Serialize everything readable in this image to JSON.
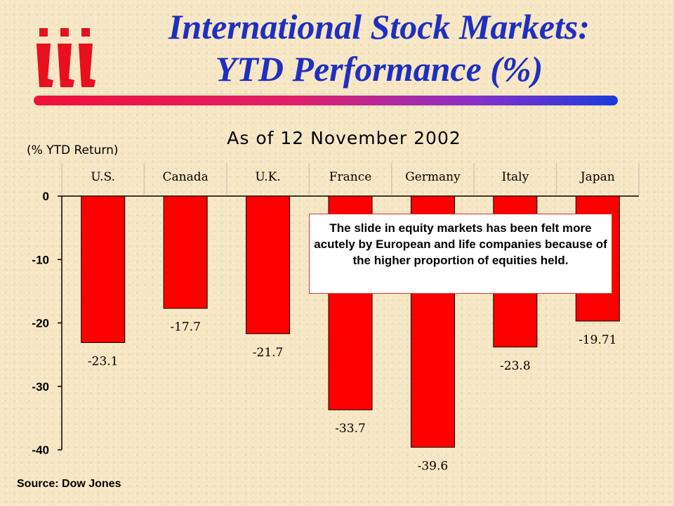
{
  "title_line1": "International Stock Markets:",
  "title_line2": "YTD Performance (%)",
  "callout_text": "The slide in equity markets has been felt more acutely by European and life companies because of the higher proportion of equities held.",
  "source": "Source:  Dow Jones",
  "colors": {
    "bar": "#ff0000",
    "title": "#1f2fbf"
  },
  "chart_data": {
    "type": "bar",
    "subtitle": "As of 12 November 2002",
    "ylabel": "(% YTD Return)",
    "categories": [
      "U.S.",
      "Canada",
      "U.K.",
      "France",
      "Germany",
      "Italy",
      "Japan"
    ],
    "values": [
      -23.1,
      -17.7,
      -21.7,
      -33.7,
      -39.6,
      -23.8,
      -19.71
    ],
    "value_labels": [
      "-23.1",
      "-17.7",
      "-21.7",
      "-33.7",
      "-39.6",
      "-23.8",
      "-19.71"
    ],
    "ylim": [
      -40,
      0
    ],
    "yticks": [
      0,
      -10,
      -20,
      -30,
      -40
    ],
    "ytick_labels": [
      "0",
      "-10",
      "-20",
      "-30",
      "-40"
    ],
    "grid": false,
    "category_axis_position": "top"
  }
}
